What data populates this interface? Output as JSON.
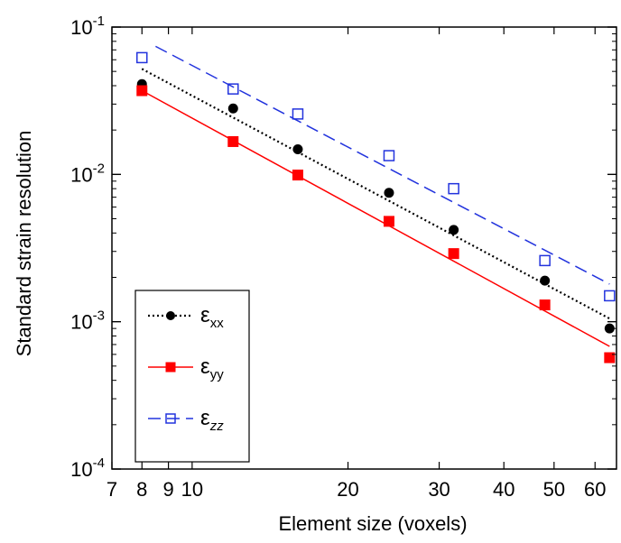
{
  "chart_data": {
    "type": "scatter",
    "xscale": "log",
    "yscale": "log",
    "xlabel": "Element size (voxels)",
    "ylabel": "Standard strain resolution",
    "xlim": [
      7,
      66
    ],
    "ylim": [
      0.0001,
      0.1
    ],
    "x_ticks": [
      {
        "value": 7,
        "label": "7"
      },
      {
        "value": 8,
        "label": "8"
      },
      {
        "value": 9,
        "label": "9"
      },
      {
        "value": 10,
        "label": "10"
      },
      {
        "value": 20,
        "label": "20"
      },
      {
        "value": 30,
        "label": "30"
      },
      {
        "value": 40,
        "label": "40"
      },
      {
        "value": 50,
        "label": "50"
      },
      {
        "value": 60,
        "label": "60"
      }
    ],
    "y_ticks": [
      {
        "value": 0.1,
        "base": "10",
        "exp": "-1"
      },
      {
        "value": 0.01,
        "base": "10",
        "exp": "-2"
      },
      {
        "value": 0.001,
        "base": "10",
        "exp": "-3"
      },
      {
        "value": 0.0001,
        "base": "10",
        "exp": "-4"
      }
    ],
    "grid": false,
    "legend_position": "bottom-left",
    "series": [
      {
        "name": "ε",
        "subscript": "xx",
        "color": "#000000",
        "marker": "filled-circle",
        "line_style": "dotted",
        "x": [
          8,
          12,
          16,
          24,
          32,
          48,
          64
        ],
        "y": [
          0.041,
          0.028,
          0.0148,
          0.0075,
          0.0042,
          0.0019,
          0.0009
        ],
        "fit": {
          "x": [
            8,
            64
          ],
          "y": [
            0.052,
            0.00105
          ]
        }
      },
      {
        "name": "ε",
        "subscript": "yy",
        "color": "#ff0000",
        "marker": "filled-square",
        "line_style": "solid",
        "x": [
          8,
          12,
          16,
          24,
          32,
          48,
          64
        ],
        "y": [
          0.037,
          0.0167,
          0.0099,
          0.0048,
          0.0029,
          0.0013,
          0.00057
        ],
        "fit": {
          "x": [
            8,
            64
          ],
          "y": [
            0.037,
            0.00068
          ]
        }
      },
      {
        "name": "ε",
        "subscript": "zz",
        "color": "#2233dd",
        "marker": "open-square",
        "line_style": "dashed",
        "x": [
          8,
          12,
          16,
          24,
          32,
          48,
          64
        ],
        "y": [
          0.062,
          0.038,
          0.0257,
          0.0134,
          0.008,
          0.0026,
          0.0015
        ],
        "fit": {
          "x": [
            8.5,
            64
          ],
          "y": [
            0.074,
            0.0018
          ]
        }
      }
    ]
  }
}
